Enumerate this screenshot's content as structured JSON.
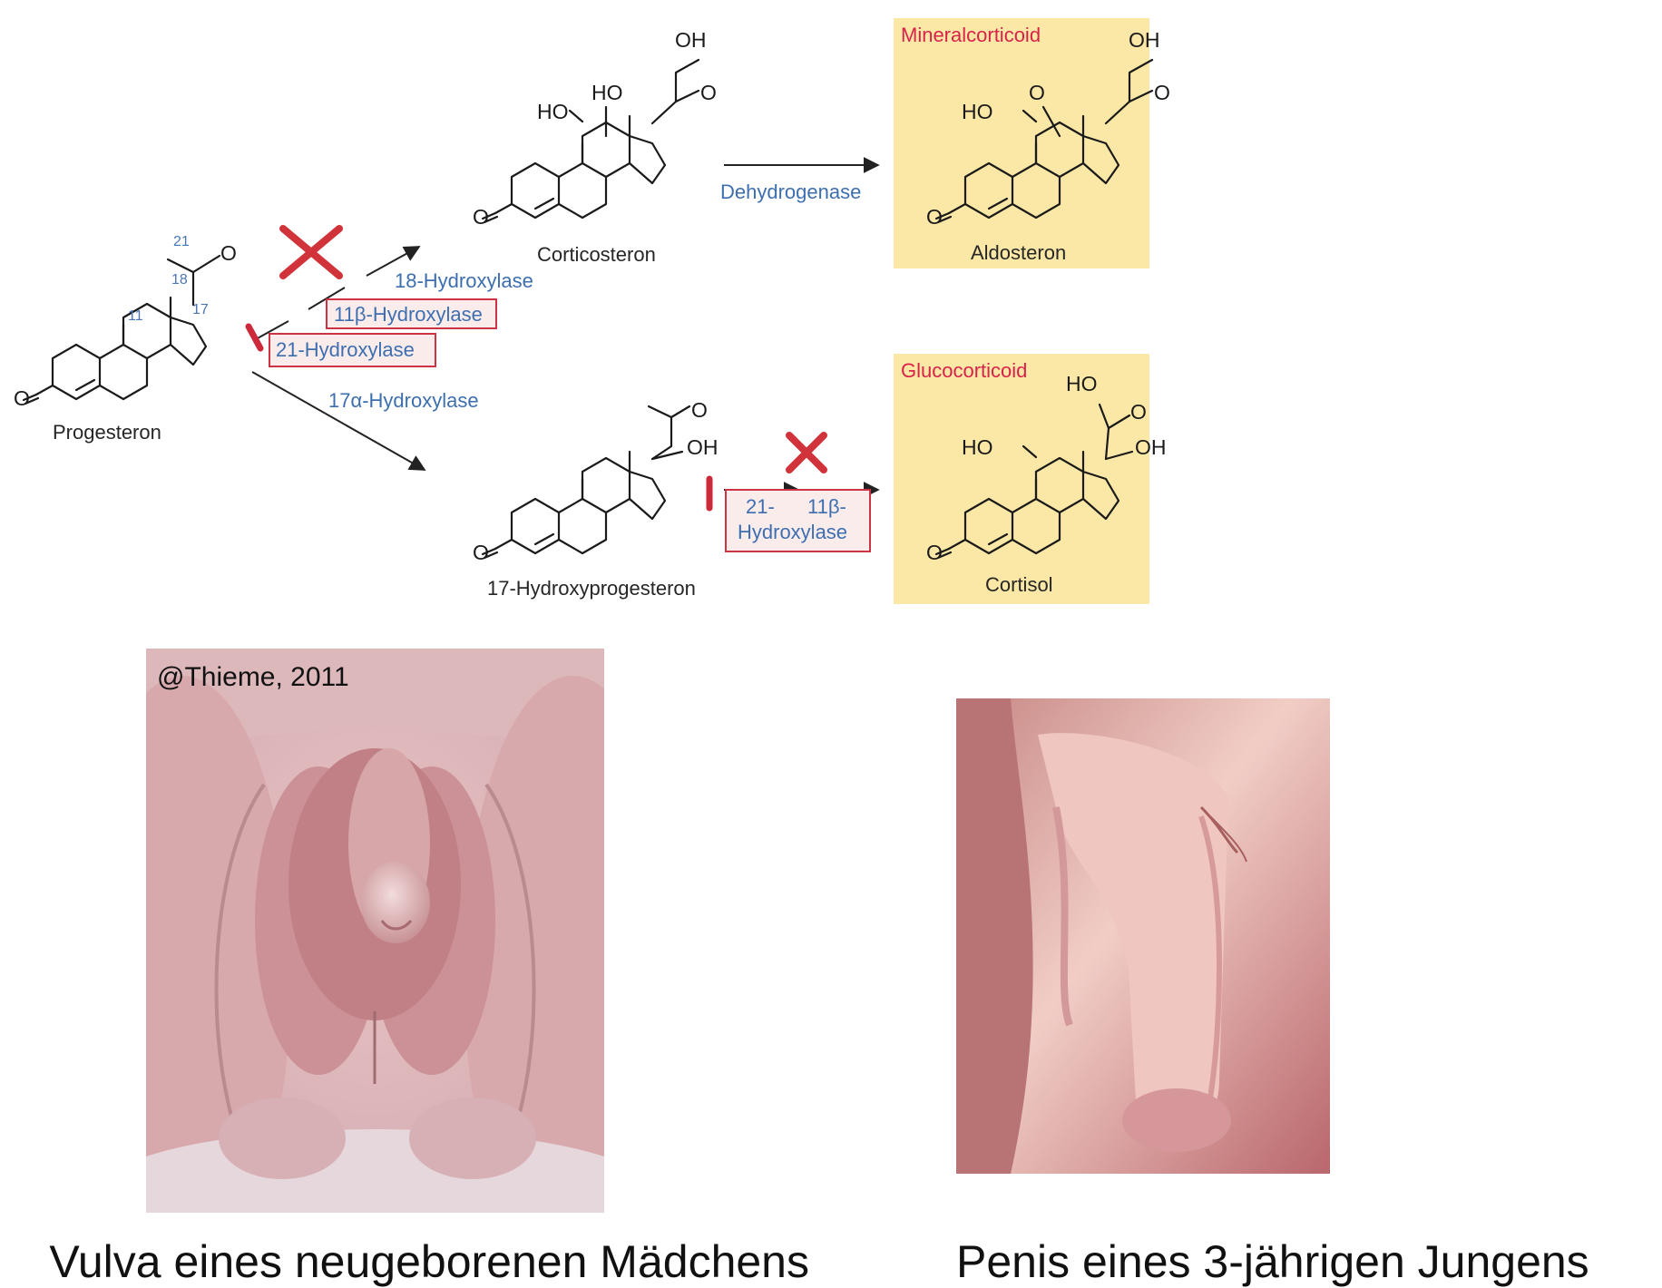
{
  "pathway": {
    "carbon_labels": [
      "21",
      "18",
      "11",
      "17"
    ],
    "enzymes": {
      "hyd18": "18-Hydroxylase",
      "hyd11b": "11β-Hydroxylase",
      "hyd21": "21-Hydroxylase",
      "hyd17a": "17α-Hydroxylase",
      "dehydrogenase": "Dehydrogenase",
      "box_21": "21-",
      "box_11b": "11β-",
      "box_hydroxylase": "Hydroxylase"
    },
    "compounds": {
      "progesterone": "Progesteron",
      "corticosterone": "Corticosteron",
      "aldosterone": "Aldosteron",
      "hydroxyprogesterone": "17-Hydroxyprogesteron",
      "cortisol": "Cortisol"
    },
    "classes": {
      "mineral": "Mineralcorticoid",
      "gluco": "Glucocorticoid"
    },
    "atoms": {
      "o": "O",
      "oh": "OH",
      "ho": "HO"
    },
    "highlight_color": "#fce8a6",
    "block_color": "#cc2a3a"
  },
  "photos": {
    "left": {
      "copyright": "@Thieme,  2011",
      "caption": "Vulva eines neugeborenen Mädchens"
    },
    "right": {
      "caption": "Penis eines 3-jährigen Jungens"
    }
  }
}
